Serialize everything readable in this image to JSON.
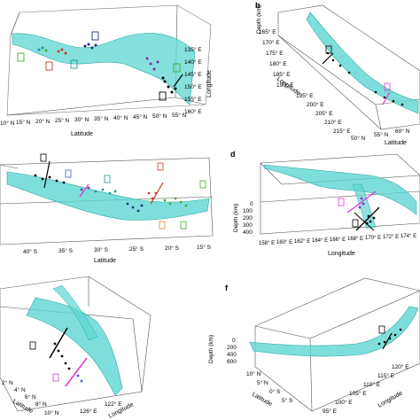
{
  "colors": {
    "surface": "#5ed6d2",
    "surface_dark": "#2aa9a6",
    "axis": "#444444",
    "black": "#000000",
    "magenta": "#e233d6",
    "green": "#3fae2a",
    "purple": "#8a2ab8",
    "navy": "#1f2a8f",
    "red": "#c83a2a",
    "orange": "#e08a1e",
    "teal": "#1d9c94",
    "blue": "#3a5ad8"
  },
  "panels": {
    "a": {
      "latitude_label": "Latitude",
      "longitude_label": "Longitude",
      "lat_ticks": [
        "10° N",
        "15° N",
        "20° N",
        "25° N",
        "30° N",
        "35° N",
        "40° N",
        "45° N",
        "50° N",
        "55° N"
      ],
      "lon_ticks": [
        "135° E",
        "140° E",
        "145° E",
        "150° E",
        "155° E",
        "160° E"
      ]
    },
    "b": {
      "letter": "b",
      "depth_label": "Depth (km)",
      "longitude_label": "Longitude",
      "latitude_label": "Latitude",
      "lon_ticks": [
        "165° E",
        "170° E",
        "175° E",
        "180° E",
        "185° E",
        "190° E",
        "195° E",
        "200° E",
        "205° E",
        "210° E",
        "215° E"
      ],
      "lat_ticks": [
        "50° N",
        "55° N",
        "60° N"
      ]
    },
    "c": {
      "latitude_label": "Latitude",
      "lat_ticks": [
        "40° S",
        "35° S",
        "30° S",
        "25° S",
        "20° S",
        "15° S"
      ]
    },
    "d": {
      "letter": "d",
      "depth_label": "Depth (km)",
      "longitude_label": "Longitude",
      "depth_ticks": [
        "0",
        "100",
        "200",
        "300",
        "400"
      ],
      "lon_ticks": [
        "158° E",
        "160° E",
        "162° E",
        "164° E",
        "166° E",
        "168° E",
        "170° E",
        "172° E",
        "174° E"
      ]
    },
    "e": {
      "latitude_label": "Latitude",
      "longitude_label": "Longitude",
      "lat_ticks": [
        "2° N",
        "4° N",
        "6° N",
        "8° N",
        "10° N"
      ],
      "lon_ticks": [
        "122° E",
        "126° E"
      ]
    },
    "f": {
      "letter": "f",
      "depth_label": "Depth (km)",
      "latitude_label": "Latitude",
      "longitude_label": "Longitude",
      "depth_ticks": [
        "0",
        "200",
        "400",
        "600"
      ],
      "lat_ticks": [
        "10° N",
        "5° N",
        "0° S",
        "5° S"
      ],
      "lon_ticks": [
        "95° E",
        "100° E",
        "105° E",
        "110° E",
        "115° E",
        "120° E"
      ]
    }
  }
}
